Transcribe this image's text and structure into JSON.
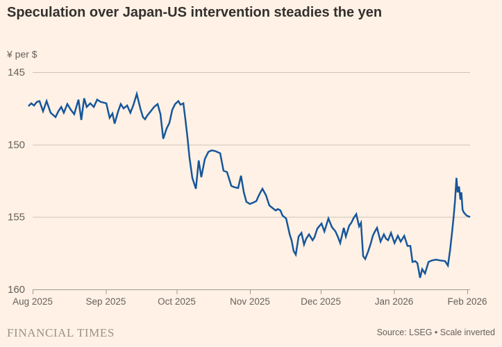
{
  "meta": {
    "brand": "FINANCIAL TIMES",
    "source_note": "Source: LSEG • Scale inverted"
  },
  "colors": {
    "background": "#FFF1E5",
    "title_text": "#33302E",
    "axis_text": "#66605C",
    "gridline": "#CDC3B8",
    "axis_line": "#A39A8F",
    "series_line": "#16569A",
    "brand_text": "#9B9186"
  },
  "chart_data": {
    "type": "line",
    "title": "Speculation over Japan-US intervention steadies the yen",
    "unit_label": "¥ per $",
    "scale_note": "Scale inverted",
    "grid": "horizontal",
    "legend": "none",
    "y_axis": {
      "ticks": [
        145,
        150,
        155,
        160
      ],
      "range": [
        145,
        160
      ],
      "inverted": true
    },
    "x_axis": {
      "unit": "days since 2025-08-01",
      "range": [
        -1.8,
        185.2
      ],
      "ticks": [
        {
          "label": "Aug 2025",
          "d": 0
        },
        {
          "label": "Sep 2025",
          "d": 31
        },
        {
          "label": "Oct 2025",
          "d": 61
        },
        {
          "label": "Nov 2025",
          "d": 92
        },
        {
          "label": "Dec 2025",
          "d": 122
        },
        {
          "label": "Jan 2026",
          "d": 153
        },
        {
          "label": "Feb 2026",
          "d": 184
        }
      ]
    },
    "series": [
      {
        "name": "Yen per US dollar",
        "points": [
          [
            -1.8,
            147.35
          ],
          [
            -0.6,
            147.15
          ],
          [
            0.6,
            147.3
          ],
          [
            1.8,
            147.05
          ],
          [
            2.9,
            147.0
          ],
          [
            4.4,
            147.7
          ],
          [
            5.9,
            147.0
          ],
          [
            7.6,
            147.8
          ],
          [
            9.7,
            148.1
          ],
          [
            10.9,
            147.7
          ],
          [
            12.1,
            147.4
          ],
          [
            13.2,
            147.8
          ],
          [
            14.7,
            147.2
          ],
          [
            16.2,
            147.6
          ],
          [
            17.6,
            147.9
          ],
          [
            19.4,
            146.9
          ],
          [
            20.6,
            148.3
          ],
          [
            21.8,
            146.8
          ],
          [
            22.9,
            147.4
          ],
          [
            24.4,
            147.15
          ],
          [
            25.9,
            147.4
          ],
          [
            27.3,
            146.9
          ],
          [
            28.8,
            147.05
          ],
          [
            30.0,
            147.1
          ],
          [
            31.2,
            147.15
          ],
          [
            32.6,
            148.15
          ],
          [
            33.8,
            147.85
          ],
          [
            34.7,
            148.55
          ],
          [
            36.2,
            147.7
          ],
          [
            37.3,
            147.2
          ],
          [
            38.5,
            147.5
          ],
          [
            40.0,
            147.3
          ],
          [
            41.4,
            147.8
          ],
          [
            42.6,
            147.3
          ],
          [
            44.1,
            146.5
          ],
          [
            45.6,
            147.5
          ],
          [
            46.7,
            148.1
          ],
          [
            47.6,
            148.25
          ],
          [
            48.5,
            148.0
          ],
          [
            50.0,
            147.7
          ],
          [
            51.4,
            147.4
          ],
          [
            52.9,
            147.2
          ],
          [
            54.1,
            147.9
          ],
          [
            55.3,
            149.6
          ],
          [
            56.7,
            148.9
          ],
          [
            57.9,
            148.5
          ],
          [
            59.1,
            147.6
          ],
          [
            60.3,
            147.2
          ],
          [
            61.7,
            147.0
          ],
          [
            62.6,
            147.25
          ],
          [
            63.8,
            147.15
          ],
          [
            64.7,
            148.3
          ],
          [
            65.6,
            149.6
          ],
          [
            66.4,
            150.9
          ],
          [
            67.6,
            152.3
          ],
          [
            69.1,
            153.05
          ],
          [
            70.3,
            151.1
          ],
          [
            71.4,
            152.25
          ],
          [
            72.9,
            151.0
          ],
          [
            74.4,
            150.5
          ],
          [
            75.8,
            150.4
          ],
          [
            77.3,
            150.45
          ],
          [
            79.4,
            150.6
          ],
          [
            80.8,
            151.8
          ],
          [
            82.3,
            151.9
          ],
          [
            84.1,
            152.85
          ],
          [
            85.5,
            152.95
          ],
          [
            87.0,
            153.0
          ],
          [
            88.2,
            152.15
          ],
          [
            89.4,
            153.3
          ],
          [
            90.5,
            153.95
          ],
          [
            92.0,
            154.1
          ],
          [
            93.5,
            154.0
          ],
          [
            94.7,
            153.9
          ],
          [
            95.5,
            153.6
          ],
          [
            96.4,
            153.3
          ],
          [
            97.3,
            153.05
          ],
          [
            98.8,
            153.5
          ],
          [
            100.2,
            154.2
          ],
          [
            101.7,
            154.4
          ],
          [
            102.9,
            154.55
          ],
          [
            103.8,
            154.45
          ],
          [
            104.9,
            154.55
          ],
          [
            105.8,
            154.9
          ],
          [
            107.3,
            155.1
          ],
          [
            108.8,
            156.2
          ],
          [
            109.6,
            156.6
          ],
          [
            110.5,
            157.35
          ],
          [
            111.4,
            157.6
          ],
          [
            112.6,
            156.35
          ],
          [
            113.8,
            156.1
          ],
          [
            114.9,
            156.9
          ],
          [
            115.8,
            156.5
          ],
          [
            117.0,
            156.2
          ],
          [
            118.5,
            156.6
          ],
          [
            119.3,
            156.4
          ],
          [
            120.5,
            155.8
          ],
          [
            122.3,
            155.45
          ],
          [
            123.5,
            156.0
          ],
          [
            125.2,
            155.1
          ],
          [
            126.7,
            155.7
          ],
          [
            128.2,
            156.0
          ],
          [
            129.3,
            156.4
          ],
          [
            130.2,
            156.8
          ],
          [
            131.7,
            155.75
          ],
          [
            132.6,
            156.35
          ],
          [
            134.0,
            155.6
          ],
          [
            134.9,
            155.4
          ],
          [
            135.8,
            155.1
          ],
          [
            137.0,
            154.8
          ],
          [
            138.2,
            155.65
          ],
          [
            139.0,
            155.4
          ],
          [
            139.9,
            157.7
          ],
          [
            140.8,
            157.9
          ],
          [
            142.0,
            157.4
          ],
          [
            143.2,
            156.8
          ],
          [
            144.0,
            156.3
          ],
          [
            144.9,
            156.0
          ],
          [
            145.8,
            155.75
          ],
          [
            147.3,
            156.7
          ],
          [
            148.7,
            156.2
          ],
          [
            149.6,
            156.5
          ],
          [
            150.5,
            156.6
          ],
          [
            151.7,
            156.1
          ],
          [
            153.2,
            156.8
          ],
          [
            154.6,
            156.3
          ],
          [
            155.8,
            156.7
          ],
          [
            157.3,
            156.3
          ],
          [
            158.7,
            157.0
          ],
          [
            159.9,
            157.0
          ],
          [
            160.8,
            158.1
          ],
          [
            162.0,
            158.05
          ],
          [
            162.9,
            158.2
          ],
          [
            164.0,
            159.2
          ],
          [
            164.9,
            158.6
          ],
          [
            166.1,
            158.9
          ],
          [
            167.6,
            158.1
          ],
          [
            169.0,
            158.0
          ],
          [
            170.8,
            157.95
          ],
          [
            172.6,
            158.0
          ],
          [
            174.6,
            158.05
          ],
          [
            175.8,
            158.35
          ],
          [
            176.7,
            157.3
          ],
          [
            177.6,
            156.0
          ],
          [
            178.2,
            155.0
          ],
          [
            178.8,
            153.9
          ],
          [
            179.4,
            152.3
          ],
          [
            179.9,
            153.3
          ],
          [
            180.5,
            152.9
          ],
          [
            181.1,
            153.8
          ],
          [
            181.5,
            153.3
          ],
          [
            182.0,
            154.5
          ],
          [
            182.6,
            154.7
          ],
          [
            183.7,
            154.9
          ],
          [
            185.2,
            155.0
          ]
        ]
      }
    ]
  }
}
